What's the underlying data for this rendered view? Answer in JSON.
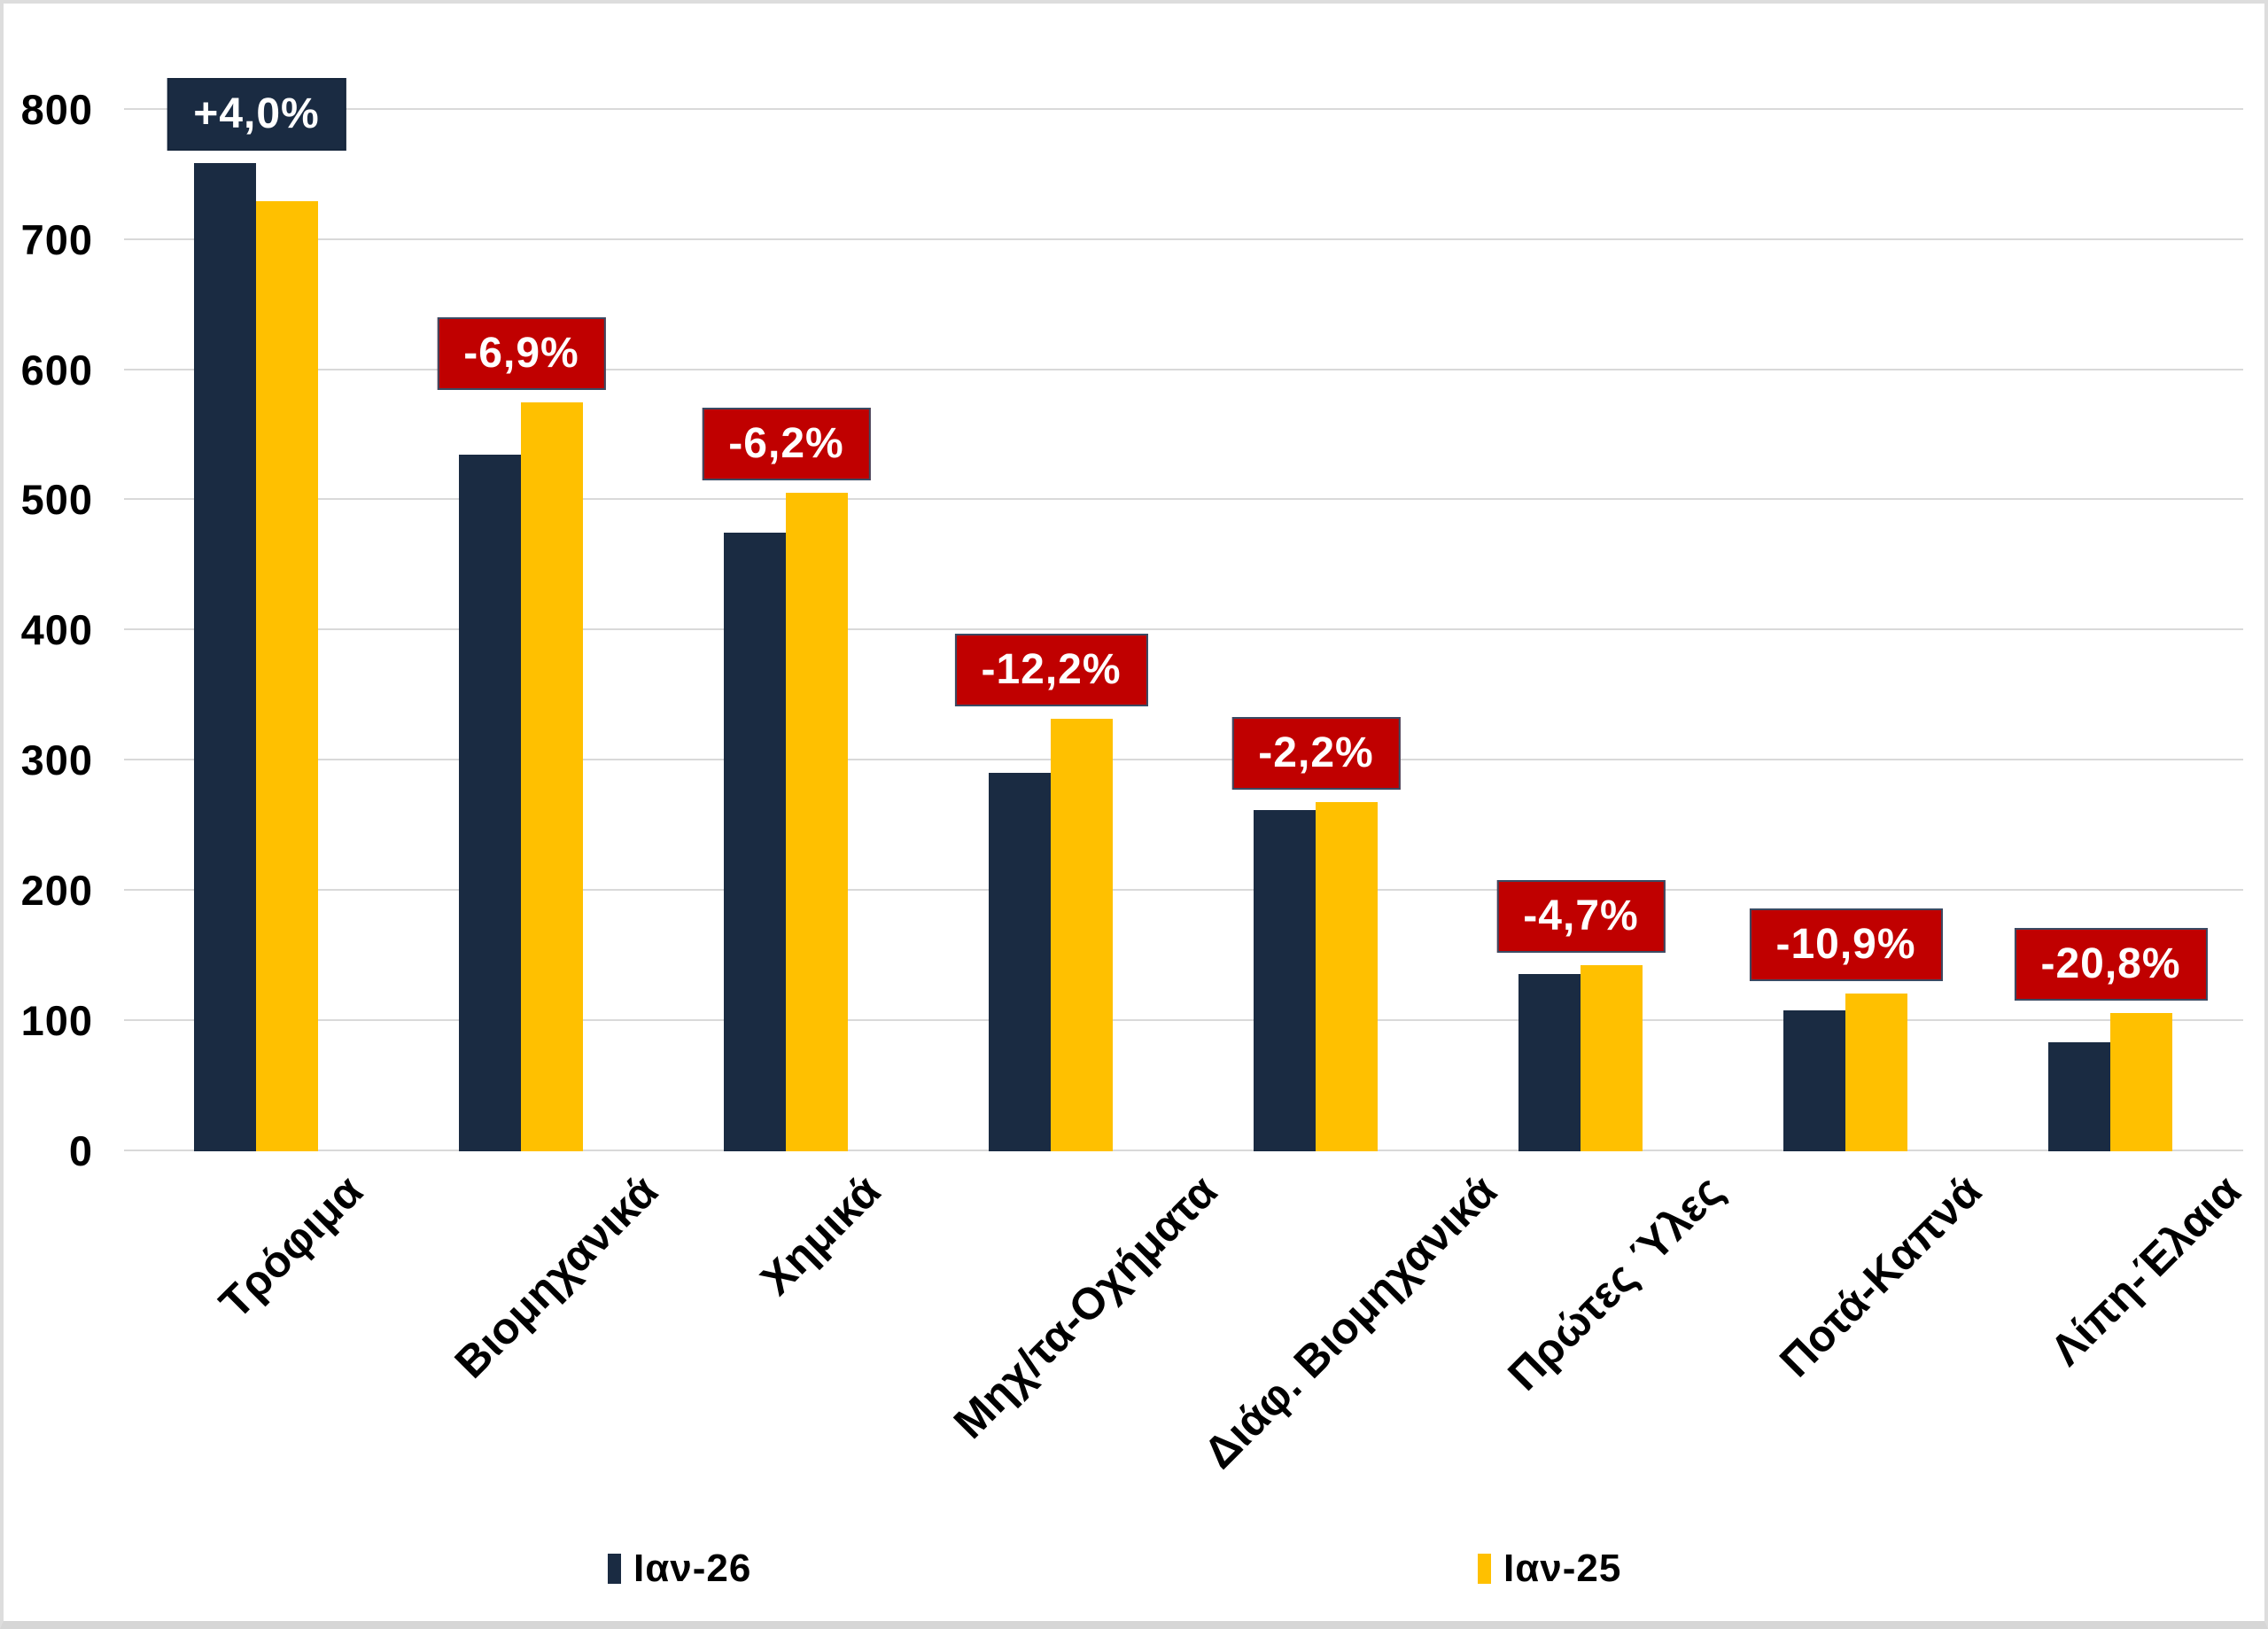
{
  "chart_data": {
    "type": "bar",
    "title": "",
    "categories": [
      "Τρόφιμα",
      "Βιομηχανικά",
      "Χημικά",
      "Μηχ/τα-Οχήματα",
      "Διάφ. Βιομηχανικά",
      "Πρώτες Ύλες",
      "Ποτά-Καπνά",
      "Λίπη-Έλαια"
    ],
    "series": [
      {
        "name": "Ιαν-26",
        "color": "#1A2B42",
        "values": [
          759,
          535,
          475,
          291,
          262,
          136,
          108,
          84
        ]
      },
      {
        "name": "Ιαν-25",
        "color": "#FFC000",
        "values": [
          730,
          575,
          506,
          332,
          268,
          143,
          121,
          106
        ]
      }
    ],
    "change_labels": [
      {
        "text": "+4,0%",
        "bg": "#1A2B42"
      },
      {
        "text": "-6,9%",
        "bg": "#C00000"
      },
      {
        "text": "-6,2%",
        "bg": "#C00000"
      },
      {
        "text": "-12,2%",
        "bg": "#C00000"
      },
      {
        "text": "-2,2%",
        "bg": "#C00000"
      },
      {
        "text": "-4,7%",
        "bg": "#C00000"
      },
      {
        "text": "-10,9%",
        "bg": "#C00000"
      },
      {
        "text": "-20,8%",
        "bg": "#C00000"
      }
    ],
    "y_ticks": [
      0,
      100,
      200,
      300,
      400,
      500,
      600,
      700,
      800
    ],
    "ylim": [
      0,
      857
    ],
    "xlabel": "",
    "ylabel": "",
    "grid": true,
    "legend_position": "bottom"
  },
  "colors": {
    "gridline": "#D9D9D9",
    "frame": "#DDDDDD",
    "box_border": "#3A4A63",
    "navy_box_border": "#16263C",
    "label_text": "#FFFFFF"
  }
}
